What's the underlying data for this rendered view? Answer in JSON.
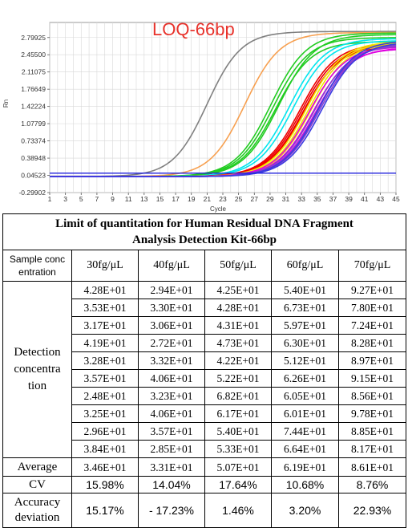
{
  "chart_data": {
    "type": "line",
    "title": "LOQ-66bp",
    "xlabel": "Cycle",
    "ylabel": "Rn",
    "xlim": [
      1,
      45
    ],
    "ylim": [
      -0.29902,
      3.1
    ],
    "x_ticks": [
      "1",
      "3",
      "5",
      "7",
      "9",
      "11",
      "13",
      "15",
      "17",
      "19",
      "21",
      "23",
      "25",
      "27",
      "29",
      "31",
      "33",
      "35",
      "37",
      "39",
      "41",
      "43",
      "45"
    ],
    "y_ticks": [
      "2.79925",
      "2.45500",
      "2.11075",
      "1.76649",
      "1.42224",
      "1.07799",
      "0.73374",
      "0.38948",
      "0.04523",
      "-0.29902"
    ],
    "y_tick_values": [
      2.79925,
      2.455,
      2.11075,
      1.76649,
      1.42224,
      1.07799,
      0.73374,
      0.38948,
      0.04523,
      -0.29902
    ],
    "threshold": 0.088,
    "grid": true,
    "series": [
      {
        "color": "#808080",
        "curves": [
          {
            "ct": 21.0,
            "plateau": 2.92,
            "slope": 0.46
          }
        ]
      },
      {
        "color": "#f7a050",
        "curves": [
          {
            "ct": 25.8,
            "plateau": 2.9,
            "slope": 0.45
          }
        ]
      },
      {
        "color": "#22cc22",
        "curves": [
          {
            "ct": 29.1,
            "plateau": 2.89,
            "slope": 0.44
          },
          {
            "ct": 29.4,
            "plateau": 2.8,
            "slope": 0.44
          },
          {
            "ct": 29.7,
            "plateau": 2.72,
            "slope": 0.44
          },
          {
            "ct": 30.1,
            "plateau": 2.86,
            "slope": 0.44
          }
        ]
      },
      {
        "color": "#00e5ee",
        "curves": [
          {
            "ct": 31.4,
            "plateau": 2.78,
            "slope": 0.44
          },
          {
            "ct": 31.9,
            "plateau": 2.74,
            "slope": 0.44
          }
        ]
      },
      {
        "color": "#ee0000",
        "curves": [
          {
            "ct": 32.8,
            "plateau": 2.68,
            "slope": 0.44
          },
          {
            "ct": 33.0,
            "plateau": 2.65,
            "slope": 0.44
          },
          {
            "ct": 33.2,
            "plateau": 2.62,
            "slope": 0.44
          },
          {
            "ct": 33.4,
            "plateau": 2.66,
            "slope": 0.44
          }
        ]
      },
      {
        "color": "#f2e600",
        "curves": [
          {
            "ct": 33.6,
            "plateau": 2.72,
            "slope": 0.44
          },
          {
            "ct": 33.9,
            "plateau": 2.7,
            "slope": 0.44
          },
          {
            "ct": 34.2,
            "plateau": 2.68,
            "slope": 0.44
          }
        ]
      },
      {
        "color": "#e000e0",
        "curves": [
          {
            "ct": 34.0,
            "plateau": 2.62,
            "slope": 0.44
          },
          {
            "ct": 34.4,
            "plateau": 2.58,
            "slope": 0.44
          },
          {
            "ct": 34.8,
            "plateau": 2.6,
            "slope": 0.44
          }
        ]
      },
      {
        "color": "#8a3fd0",
        "curves": [
          {
            "ct": 34.6,
            "plateau": 2.64,
            "slope": 0.44
          },
          {
            "ct": 35.0,
            "plateau": 2.66,
            "slope": 0.44
          },
          {
            "ct": 35.3,
            "plateau": 2.68,
            "slope": 0.44
          }
        ]
      },
      {
        "color": "#3a3ae0",
        "curves": [
          {
            "ct": 35.2,
            "plateau": 2.74,
            "slope": 0.44
          },
          {
            "ct": 35.6,
            "plateau": 2.71,
            "slope": 0.44
          }
        ]
      }
    ]
  },
  "table": {
    "title_line1": "Limit of quantitation for Human Residual DNA Fragment",
    "title_line2": "Analysis Detection Kit-66bp",
    "header_first_line1": "Sample conc",
    "header_first_line2": "entration",
    "columns": [
      "30fg/μL",
      "40fg/μL",
      "50fg/μL",
      "60fg/μL",
      "70fg/μL"
    ],
    "detection_label_line1": "Detection",
    "detection_label_line2": "concentra",
    "detection_label_line3": "tion",
    "rows": [
      [
        "4.28E+01",
        "2.94E+01",
        "4.25E+01",
        "5.40E+01",
        "9.27E+01"
      ],
      [
        "3.53E+01",
        "3.30E+01",
        "4.28E+01",
        "6.73E+01",
        "7.80E+01"
      ],
      [
        "3.17E+01",
        "3.06E+01",
        "4.31E+01",
        "5.97E+01",
        "7.24E+01"
      ],
      [
        "4.19E+01",
        "2.72E+01",
        "4.73E+01",
        "6.30E+01",
        "8.28E+01"
      ],
      [
        "3.28E+01",
        "3.32E+01",
        "4.22E+01",
        "5.12E+01",
        "8.97E+01"
      ],
      [
        "3.57E+01",
        "4.06E+01",
        "5.22E+01",
        "6.26E+01",
        "9.15E+01"
      ],
      [
        "2.48E+01",
        "3.23E+01",
        "6.82E+01",
        "6.05E+01",
        "8.56E+01"
      ],
      [
        "3.25E+01",
        "4.06E+01",
        "6.17E+01",
        "6.01E+01",
        "9.78E+01"
      ],
      [
        "2.96E+01",
        "3.57E+01",
        "5.40E+01",
        "7.44E+01",
        "8.85E+01"
      ],
      [
        "3.84E+01",
        "2.85E+01",
        "5.33E+01",
        "6.64E+01",
        "8.17E+01"
      ]
    ],
    "average_label": "Average",
    "average": [
      "3.46E+01",
      "3.31E+01",
      "5.07E+01",
      "6.19E+01",
      "8.61E+01"
    ],
    "cv_label": "CV",
    "cv": [
      "15.98%",
      "14.04%",
      "17.64%",
      "10.68%",
      "8.76%"
    ],
    "accuracy_label_line1": "Accuracy",
    "accuracy_label_line2": "deviation",
    "accuracy": [
      "15.17%",
      "- 17.23%",
      "1.46%",
      "3.20%",
      "22.93%"
    ]
  }
}
